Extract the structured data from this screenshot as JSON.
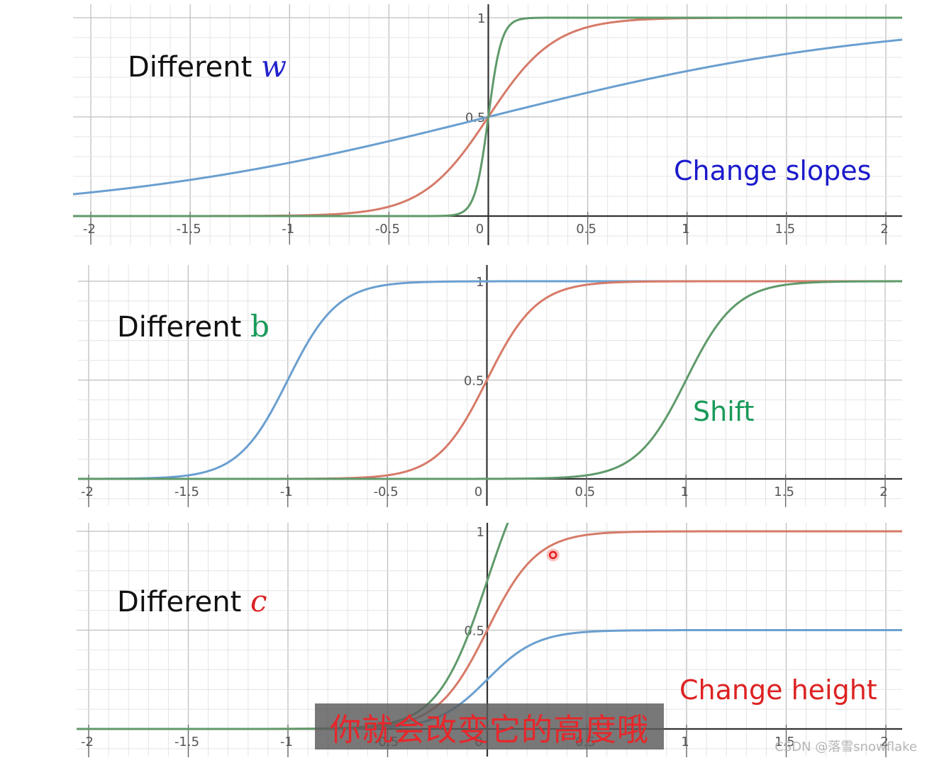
{
  "chart_data": [
    {
      "type": "line",
      "title": "Different w",
      "title_text": "Different ",
      "title_var": "w",
      "title_var_color": "#2222cc",
      "annotation": "Change slopes",
      "annotation_color": "#1a1acc",
      "xlim": [
        -2,
        2
      ],
      "ylim": [
        0,
        1
      ],
      "x_ticks": [
        "-2",
        "-1.5",
        "-1",
        "-0.5",
        "0",
        "0.5",
        "1",
        "1.5",
        "2"
      ],
      "y_ticks": [
        "0.5",
        "1"
      ],
      "grid": true,
      "series": [
        {
          "color": "#6a9fd0",
          "function": "sigmoid",
          "w": 1,
          "b": 0,
          "c": 1
        },
        {
          "color": "#d67a68",
          "function": "sigmoid",
          "w": 6,
          "b": 0,
          "c": 1
        },
        {
          "color": "#5f9a6a",
          "function": "sigmoid",
          "w": 30,
          "b": 0,
          "c": 1
        }
      ]
    },
    {
      "type": "line",
      "title": "Different b",
      "title_text": "Different ",
      "title_var": "b",
      "title_var_color": "#1a9a5a",
      "annotation": "Shift",
      "annotation_color": "#1a9a5a",
      "xlim": [
        -2,
        2
      ],
      "ylim": [
        0,
        1
      ],
      "x_ticks": [
        "-2",
        "-1.5",
        "-1",
        "-0.5",
        "0",
        "0.5",
        "1",
        "1.5",
        "2"
      ],
      "y_ticks": [
        "0.5",
        "1"
      ],
      "grid": true,
      "series": [
        {
          "color": "#6a9fd0",
          "function": "sigmoid",
          "w": 8,
          "b": 8,
          "c": 1
        },
        {
          "color": "#d67a68",
          "function": "sigmoid",
          "w": 8,
          "b": 0,
          "c": 1
        },
        {
          "color": "#5f9a6a",
          "function": "sigmoid",
          "w": 8,
          "b": -8,
          "c": 1
        }
      ]
    },
    {
      "type": "line",
      "title": "Different c",
      "title_text": "Different ",
      "title_var": "c",
      "title_var_color": "#dd2222",
      "annotation": "Change height",
      "annotation_color": "#dd2222",
      "xlim": [
        -2,
        2
      ],
      "ylim": [
        0,
        1
      ],
      "x_ticks": [
        "-2",
        "-1.5",
        "-1",
        "-0.5",
        "0",
        "0.5",
        "1",
        "1.5",
        "2"
      ],
      "y_ticks": [
        "0.5",
        "1"
      ],
      "grid": true,
      "highlight_point": {
        "x": 0.33,
        "y": 0.88
      },
      "series": [
        {
          "color": "#6a9fd0",
          "function": "sigmoid",
          "w": 8,
          "b": 0,
          "c": 0.5
        },
        {
          "color": "#d67a68",
          "function": "sigmoid",
          "w": 8,
          "b": 0,
          "c": 1
        },
        {
          "color": "#5f9a6a",
          "function": "sigmoid",
          "w": 8,
          "b": 0,
          "c": 1.5
        }
      ]
    }
  ],
  "subtitle": "你就会改变它的高度哦",
  "watermark": "CSDN @落雪snowflake"
}
